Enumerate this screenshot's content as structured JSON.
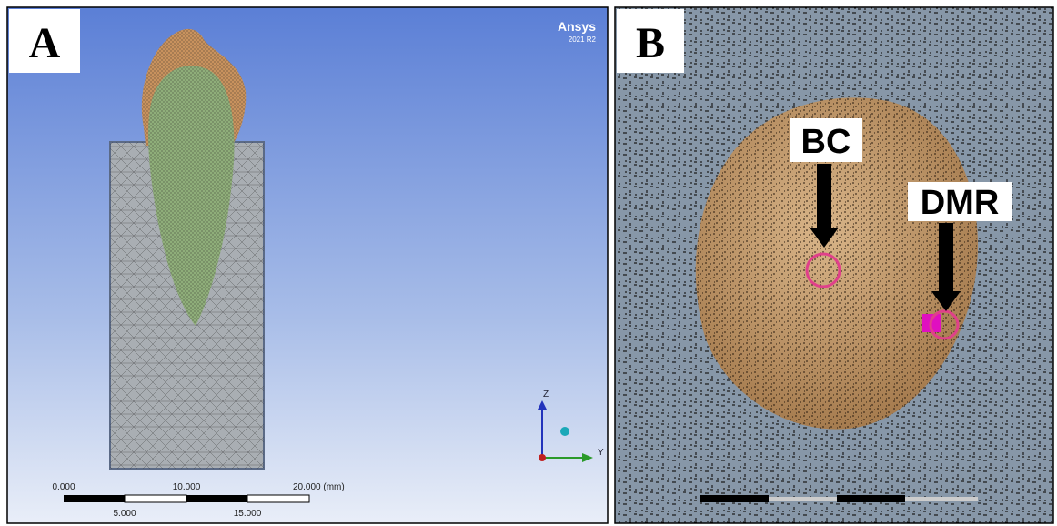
{
  "panels": [
    {
      "label": "A",
      "software": {
        "name": "Ansys",
        "version": "2021 R2"
      },
      "axes": {
        "z": "Z",
        "y": "Y"
      },
      "scale": {
        "top": [
          "0.000",
          "10.000",
          "20.000 (mm)"
        ],
        "bottom": [
          "5.000",
          "15.000"
        ]
      }
    },
    {
      "label": "B",
      "annotations": [
        "BC",
        "DMR"
      ]
    }
  ]
}
